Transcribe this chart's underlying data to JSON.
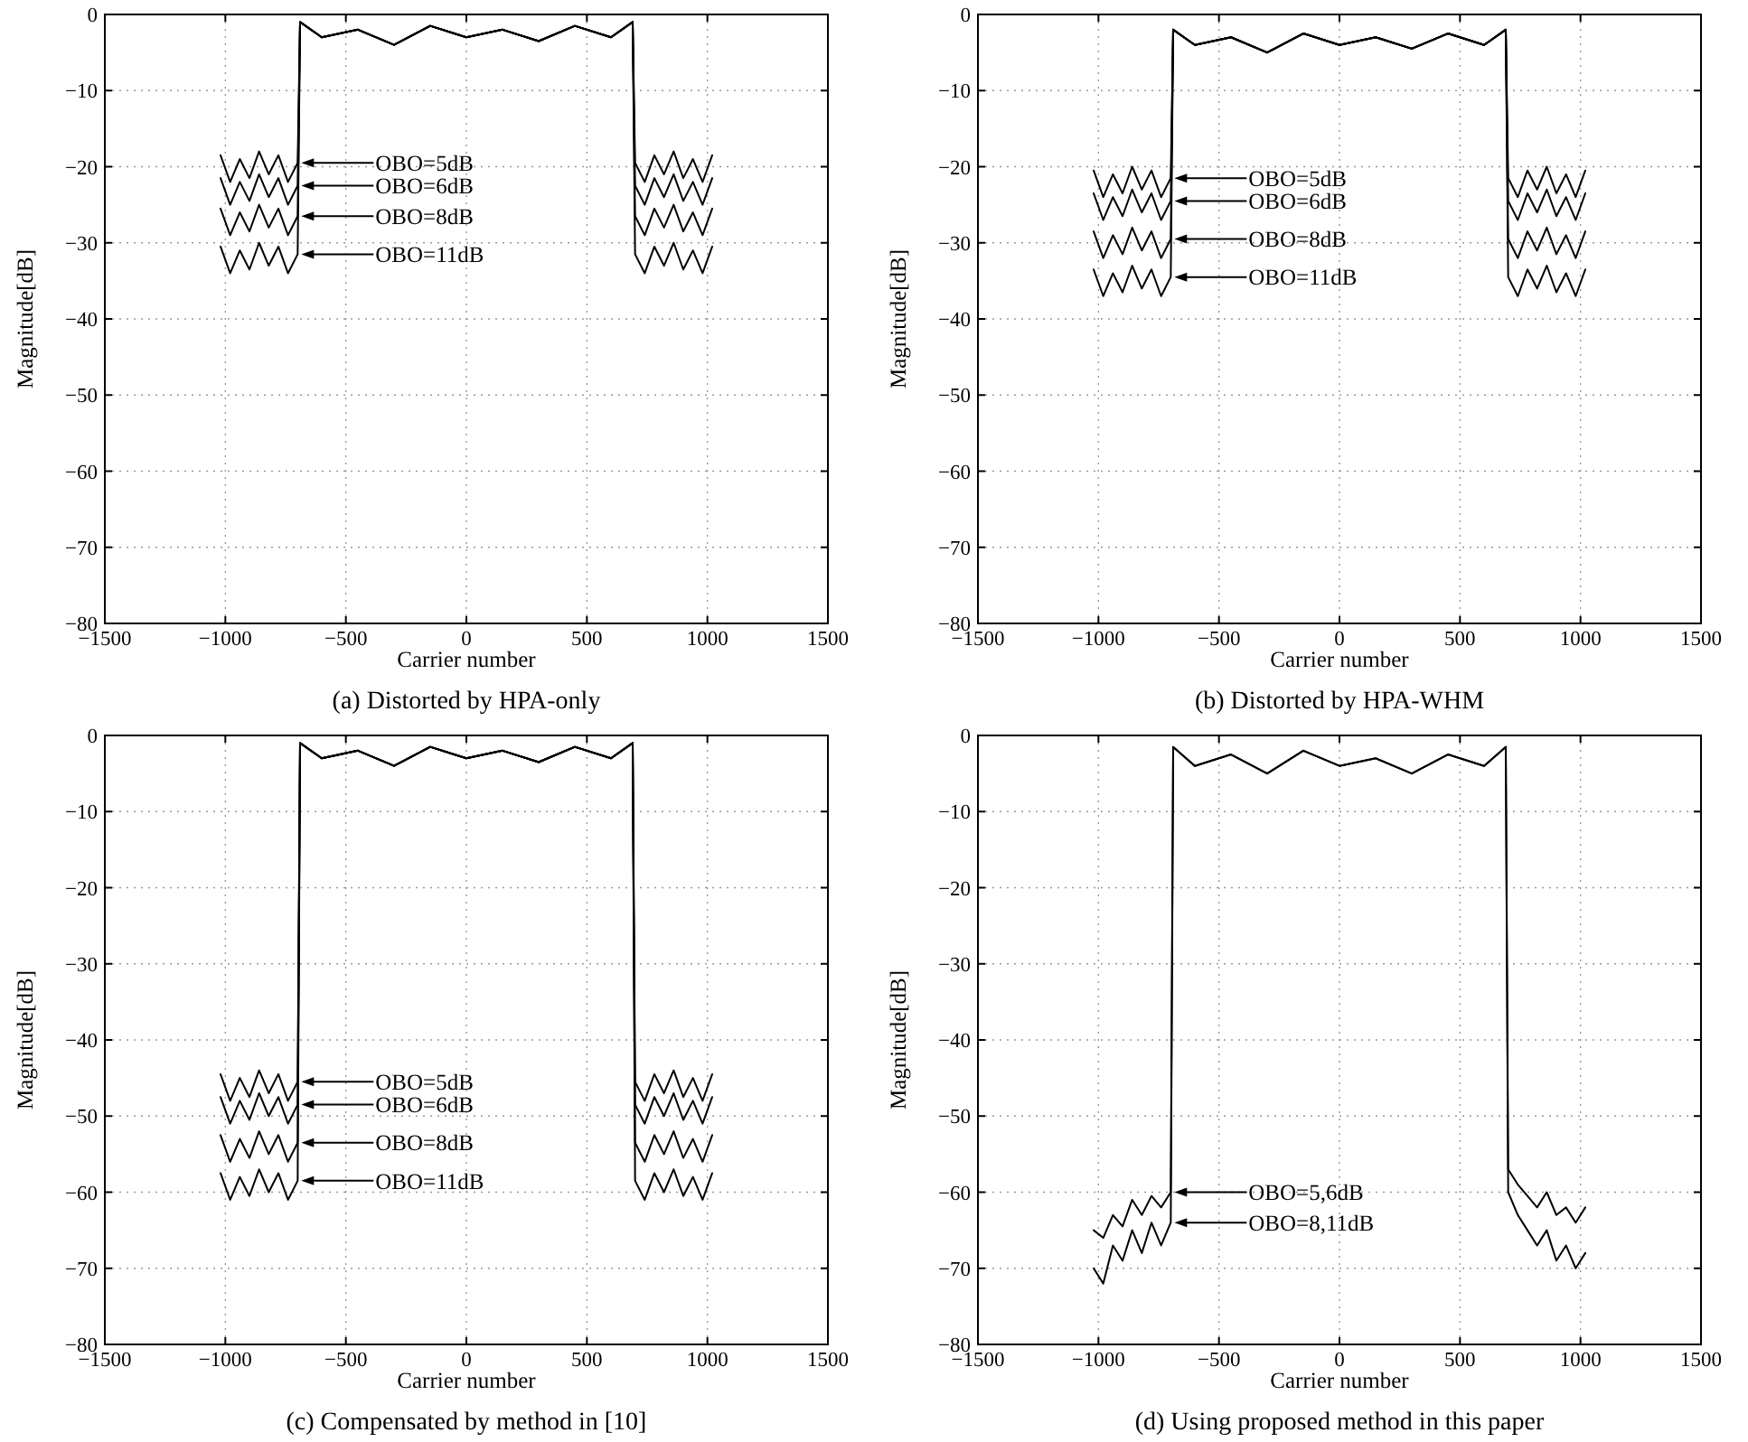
{
  "chart_data": [
    {
      "type": "line",
      "title": "(a) Distorted by HPA-only",
      "xlabel": "Carrier number",
      "ylabel": "Magnitude[dB]",
      "xlim": [
        -1500,
        1500
      ],
      "xticks": [
        -1500,
        -1000,
        -500,
        0,
        500,
        1000,
        1500
      ],
      "ylim": [
        -80,
        0
      ],
      "yticks": [
        -80,
        -70,
        -60,
        -50,
        -40,
        -30,
        -20,
        -10,
        0
      ],
      "grid": true,
      "line_style": "solid",
      "marker": "none",
      "x": [
        -1020,
        -980,
        -940,
        -900,
        -860,
        -820,
        -780,
        -740,
        -700,
        -690,
        -600,
        -450,
        -300,
        -150,
        0,
        150,
        300,
        450,
        600,
        690,
        700,
        740,
        780,
        820,
        860,
        900,
        940,
        980,
        1020
      ],
      "series": [
        {
          "color": "#000000",
          "values": [
            -18.5,
            -22,
            -19,
            -21.5,
            -18,
            -21,
            -18.5,
            -22,
            -19.5,
            -1,
            -3,
            -2,
            -4,
            -1.5,
            -3,
            -2,
            -3.5,
            -1.5,
            -3,
            -1,
            -19.5,
            -22,
            -18.5,
            -21,
            -18,
            -21.5,
            -19,
            -22,
            -18.5
          ]
        },
        {
          "color": "#000000",
          "values": [
            -21.5,
            -25,
            -22,
            -24.5,
            -21,
            -24,
            -21.5,
            -25,
            -22.5,
            -1,
            -3,
            -2,
            -4,
            -1.5,
            -3,
            -2,
            -3.5,
            -1.5,
            -3,
            -1,
            -22.5,
            -25,
            -21.5,
            -24,
            -21,
            -24.5,
            -22,
            -25,
            -21.5
          ]
        },
        {
          "color": "#000000",
          "values": [
            -25.5,
            -29,
            -26,
            -28.5,
            -25,
            -28,
            -25.5,
            -29,
            -26.5,
            -1,
            -3,
            -2,
            -4,
            -1.5,
            -3,
            -2,
            -3.5,
            -1.5,
            -3,
            -1,
            -26.5,
            -29,
            -25.5,
            -28,
            -25,
            -28.5,
            -26,
            -29,
            -25.5
          ]
        },
        {
          "color": "#000000",
          "values": [
            -30.5,
            -34,
            -31,
            -33.5,
            -30,
            -33,
            -30.5,
            -34,
            -31.5,
            -1,
            -3,
            -2,
            -4,
            -1.5,
            -3,
            -2,
            -3.5,
            -1.5,
            -3,
            -1,
            -31.5,
            -34,
            -30.5,
            -33,
            -30,
            -33.5,
            -31,
            -34,
            -30.5
          ]
        }
      ],
      "annotations": [
        "OBO=5dB",
        "OBO=6dB",
        "OBO=8dB",
        "OBO=11dB"
      ]
    },
    {
      "type": "line",
      "title": "(b) Distorted by HPA-WHM",
      "xlabel": "Carrier number",
      "ylabel": "Magnitude[dB]",
      "xlim": [
        -1500,
        1500
      ],
      "xticks": [
        -1500,
        -1000,
        -500,
        0,
        500,
        1000,
        1500
      ],
      "ylim": [
        -80,
        0
      ],
      "yticks": [
        -80,
        -70,
        -60,
        -50,
        -40,
        -30,
        -20,
        -10,
        0
      ],
      "grid": true,
      "line_style": "solid",
      "marker": "none",
      "x": [
        -1020,
        -980,
        -940,
        -900,
        -860,
        -820,
        -780,
        -740,
        -700,
        -690,
        -600,
        -450,
        -300,
        -150,
        0,
        150,
        300,
        450,
        600,
        690,
        700,
        740,
        780,
        820,
        860,
        900,
        940,
        980,
        1020
      ],
      "series": [
        {
          "color": "#000000",
          "values": [
            -20.5,
            -24,
            -21,
            -23.5,
            -20,
            -23,
            -20.5,
            -24,
            -21.5,
            -2,
            -4,
            -3,
            -5,
            -2.5,
            -4,
            -3,
            -4.5,
            -2.5,
            -4,
            -2,
            -21.5,
            -24,
            -20.5,
            -23,
            -20,
            -23.5,
            -21,
            -24,
            -20.5
          ]
        },
        {
          "color": "#000000",
          "values": [
            -23.5,
            -27,
            -24,
            -26.5,
            -23,
            -26,
            -23.5,
            -27,
            -24.5,
            -2,
            -4,
            -3,
            -5,
            -2.5,
            -4,
            -3,
            -4.5,
            -2.5,
            -4,
            -2,
            -24.5,
            -27,
            -23.5,
            -26,
            -23,
            -26.5,
            -24,
            -27,
            -23.5
          ]
        },
        {
          "color": "#000000",
          "values": [
            -28.5,
            -32,
            -29,
            -31.5,
            -28,
            -31,
            -28.5,
            -32,
            -29.5,
            -2,
            -4,
            -3,
            -5,
            -2.5,
            -4,
            -3,
            -4.5,
            -2.5,
            -4,
            -2,
            -29.5,
            -32,
            -28.5,
            -31,
            -28,
            -31.5,
            -29,
            -32,
            -28.5
          ]
        },
        {
          "color": "#000000",
          "values": [
            -33.5,
            -37,
            -34,
            -36.5,
            -33,
            -36,
            -33.5,
            -37,
            -34.5,
            -2,
            -4,
            -3,
            -5,
            -2.5,
            -4,
            -3,
            -4.5,
            -2.5,
            -4,
            -2,
            -34.5,
            -37,
            -33.5,
            -36,
            -33,
            -36.5,
            -34,
            -37,
            -33.5
          ]
        }
      ],
      "annotations": [
        "OBO=5dB",
        "OBO=6dB",
        "OBO=8dB",
        "OBO=11dB"
      ]
    },
    {
      "type": "line",
      "title": "(c) Compensated by method in [10]",
      "xlabel": "Carrier number",
      "ylabel": "Magnitude[dB]",
      "xlim": [
        -1500,
        1500
      ],
      "xticks": [
        -1500,
        -1000,
        -500,
        0,
        500,
        1000,
        1500
      ],
      "ylim": [
        -80,
        0
      ],
      "yticks": [
        -80,
        -70,
        -60,
        -50,
        -40,
        -30,
        -20,
        -10,
        0
      ],
      "grid": true,
      "line_style": "solid",
      "marker": "none",
      "x": [
        -1020,
        -980,
        -940,
        -900,
        -860,
        -820,
        -780,
        -740,
        -700,
        -690,
        -600,
        -450,
        -300,
        -150,
        0,
        150,
        300,
        450,
        600,
        690,
        700,
        740,
        780,
        820,
        860,
        900,
        940,
        980,
        1020
      ],
      "series": [
        {
          "color": "#000000",
          "values": [
            -44.5,
            -48,
            -45,
            -47.5,
            -44,
            -47,
            -44.5,
            -48,
            -45.5,
            -1,
            -3,
            -2,
            -4,
            -1.5,
            -3,
            -2,
            -3.5,
            -1.5,
            -3,
            -1,
            -45.5,
            -48,
            -44.5,
            -47,
            -44,
            -47.5,
            -45,
            -48,
            -44.5
          ]
        },
        {
          "color": "#000000",
          "values": [
            -47.5,
            -51,
            -48,
            -50.5,
            -47,
            -50,
            -47.5,
            -51,
            -48.5,
            -1,
            -3,
            -2,
            -4,
            -1.5,
            -3,
            -2,
            -3.5,
            -1.5,
            -3,
            -1,
            -48.5,
            -51,
            -47.5,
            -50,
            -47,
            -50.5,
            -48,
            -51,
            -47.5
          ]
        },
        {
          "color": "#000000",
          "values": [
            -52.5,
            -56,
            -53,
            -55.5,
            -52,
            -55,
            -52.5,
            -56,
            -53.5,
            -1,
            -3,
            -2,
            -4,
            -1.5,
            -3,
            -2,
            -3.5,
            -1.5,
            -3,
            -1,
            -53.5,
            -56,
            -52.5,
            -55,
            -52,
            -55.5,
            -53,
            -56,
            -52.5
          ]
        },
        {
          "color": "#000000",
          "values": [
            -57.5,
            -61,
            -58,
            -60.5,
            -57,
            -60,
            -57.5,
            -61,
            -58.5,
            -1,
            -3,
            -2,
            -4,
            -1.5,
            -3,
            -2,
            -3.5,
            -1.5,
            -3,
            -1,
            -58.5,
            -61,
            -57.5,
            -60,
            -57,
            -60.5,
            -58,
            -61,
            -57.5
          ]
        }
      ],
      "annotations": [
        "OBO=5dB",
        "OBO=6dB",
        "OBO=8dB",
        "OBO=11dB"
      ]
    },
    {
      "type": "line",
      "title": "(d) Using proposed method in this paper",
      "xlabel": "Carrier number",
      "ylabel": "Magnitude[dB]",
      "xlim": [
        -1500,
        1500
      ],
      "xticks": [
        -1500,
        -1000,
        -500,
        0,
        500,
        1000,
        1500
      ],
      "ylim": [
        -80,
        0
      ],
      "yticks": [
        -80,
        -70,
        -60,
        -50,
        -40,
        -30,
        -20,
        -10,
        0
      ],
      "grid": true,
      "line_style": "solid",
      "marker": "none",
      "x": [
        -1020,
        -980,
        -940,
        -900,
        -860,
        -820,
        -780,
        -740,
        -700,
        -690,
        -600,
        -450,
        -300,
        -150,
        0,
        150,
        300,
        450,
        600,
        690,
        700,
        740,
        780,
        820,
        860,
        900,
        940,
        980,
        1020
      ],
      "series": [
        {
          "color": "#000000",
          "values": [
            -65,
            -66,
            -63,
            -64.5,
            -61,
            -63,
            -60.5,
            -62,
            -60,
            -1.5,
            -4,
            -2.5,
            -5,
            -2,
            -4,
            -3,
            -5,
            -2.5,
            -4,
            -1.5,
            -57,
            -59,
            -60.5,
            -62,
            -60,
            -63,
            -62,
            -64,
            -62
          ]
        },
        {
          "color": "#000000",
          "values": [
            -70,
            -72,
            -67,
            -69,
            -65,
            -68,
            -64,
            -67,
            -64,
            -1.5,
            -4,
            -2.5,
            -5,
            -2,
            -4,
            -3,
            -5,
            -2.5,
            -4,
            -1.5,
            -60,
            -63,
            -65,
            -67,
            -65,
            -69,
            -67,
            -70,
            -68
          ]
        }
      ],
      "annotations": [
        "OBO=5,6dB",
        "OBO=8,11dB"
      ]
    }
  ]
}
